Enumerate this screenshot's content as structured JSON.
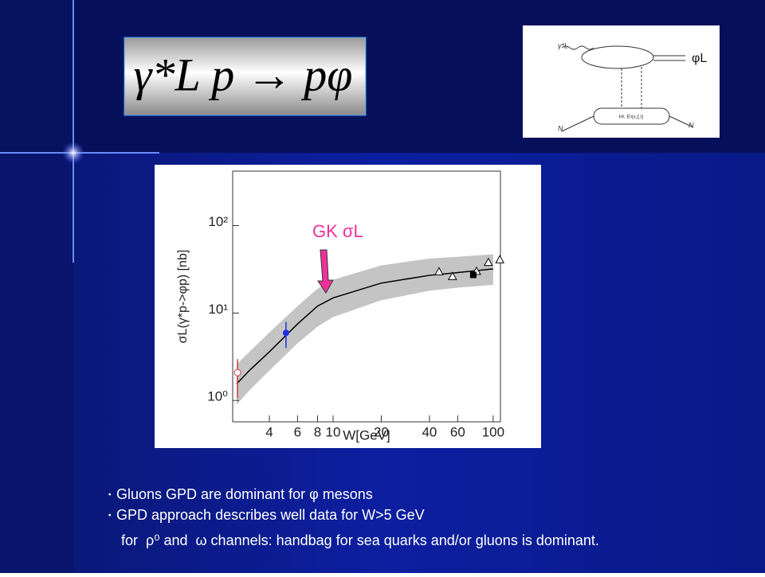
{
  "slide": {
    "formula": "γ*L p → pφ",
    "diagram": {
      "photon": "γ*L",
      "meson": "φL",
      "nucleon_in": "N",
      "nucleon_out": "N",
      "gpd": "Hᵍ, Eᵍ(x,ξ,t)"
    },
    "bullets": [
      "Gluons GPD are dominant for φ mesons",
      "GPD approach describes well data for W>5 GeV",
      "for  ρ⁰ and  ω channels: handbag for sea quarks and/or gluons is dominant."
    ]
  },
  "chart_data": {
    "type": "scatter",
    "x_label": "W[GeV]",
    "y_label": "σL(γ*p->φp)  [nb]",
    "annotation": "GK σL",
    "annotation_color": "#f0309a",
    "log_x": true,
    "log_y": true,
    "xlim": [
      2.36,
      111
    ],
    "ylim": [
      0.57,
      420
    ],
    "xticks": [
      4,
      6,
      8,
      10,
      20,
      40,
      60,
      100
    ],
    "yticks": [
      {
        "value": 1,
        "label": "10⁰"
      },
      {
        "value": 10,
        "label": "10¹"
      },
      {
        "value": 100,
        "label": "10²"
      }
    ],
    "curve": {
      "color": "#000000",
      "band_color": "#c4c4c4",
      "x": [
        2.5,
        3,
        4,
        6,
        8,
        10,
        20,
        40,
        60,
        100
      ],
      "values": [
        1.55,
        2.2,
        3.6,
        7.5,
        12,
        14.9,
        22,
        27,
        29,
        32
      ],
      "lower": [
        0.9,
        1.3,
        2.2,
        4.5,
        7,
        9,
        14,
        18,
        19.5,
        21
      ],
      "upper": [
        2.6,
        3.6,
        6,
        12,
        19,
        24,
        35,
        42,
        44,
        47
      ]
    },
    "series": [
      {
        "marker": "open-circle",
        "color": "#d04040",
        "x": [
          2.53
        ],
        "values": [
          2.08
        ],
        "err_low": [
          1.06
        ],
        "err_high": [
          2.97
        ]
      },
      {
        "marker": "circle",
        "color": "#2030e0",
        "x": [
          5.08
        ],
        "values": [
          5.93
        ],
        "err_low": [
          3.98
        ],
        "err_high": [
          7.9
        ]
      },
      {
        "marker": "open-triangle",
        "color": "#000000",
        "x": [
          45.9,
          55.7,
          78.7,
          93.3,
          110
        ],
        "values": [
          29.7,
          26.2,
          30,
          38,
          40.8
        ]
      },
      {
        "marker": "square",
        "color": "#000000",
        "x": [
          75.1
        ],
        "values": [
          27.3
        ]
      }
    ]
  }
}
